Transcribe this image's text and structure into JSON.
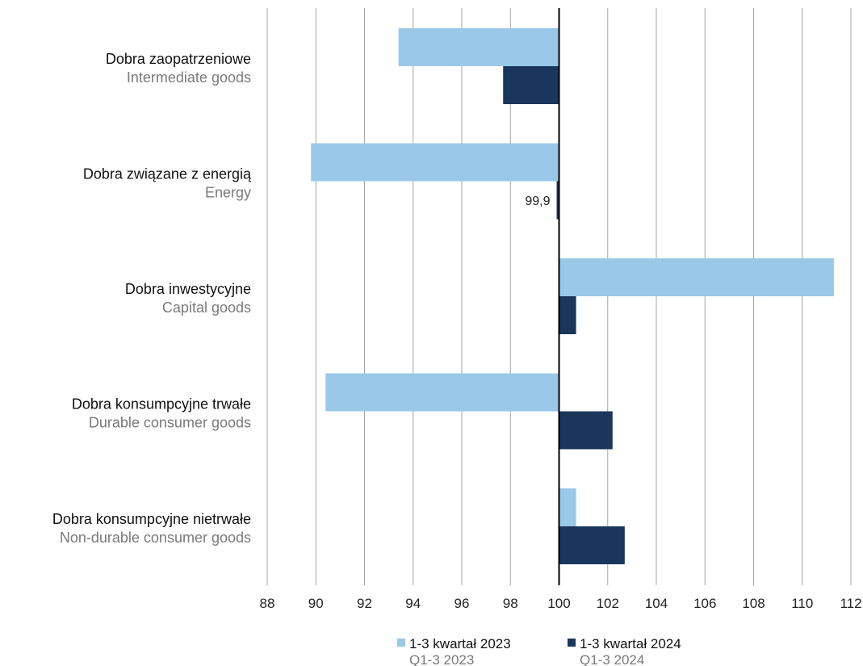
{
  "chart_data": {
    "type": "bar",
    "orientation": "horizontal",
    "baseline": 100,
    "xlim": [
      88,
      112
    ],
    "x_ticks": [
      "88",
      "90",
      "92",
      "94",
      "96",
      "98",
      "100",
      "102",
      "104",
      "106",
      "108",
      "110",
      "112"
    ],
    "grid": true,
    "categories": [
      {
        "label_pl": "Dobra zaopatrzeniowe",
        "label_en": "Intermediate goods"
      },
      {
        "label_pl": "Dobra związane z energią",
        "label_en": "Energy"
      },
      {
        "label_pl": "Dobra inwestycyjne",
        "label_en": "Capital goods"
      },
      {
        "label_pl": "Dobra konsumpcyjne trwałe",
        "label_en": "Durable consumer goods"
      },
      {
        "label_pl": "Dobra konsumpcyjne nietrwałe",
        "label_en": "Non-durable consumer goods"
      }
    ],
    "series": [
      {
        "name_pl": "1-3 kwartał 2023",
        "name_en": "Q1-3 2023",
        "color": "#9ac8e8",
        "values": [
          93.4,
          89.8,
          111.3,
          90.4,
          100.7
        ]
      },
      {
        "name_pl": "1-3 kwartał 2024",
        "name_en": "Q1-3 2024",
        "color": "#1b365d",
        "values": [
          97.7,
          99.9,
          100.7,
          102.2,
          102.7
        ]
      }
    ],
    "annotations": [
      {
        "series": 1,
        "category": 1,
        "text": "99,9"
      }
    ],
    "legend_position": "bottom"
  }
}
